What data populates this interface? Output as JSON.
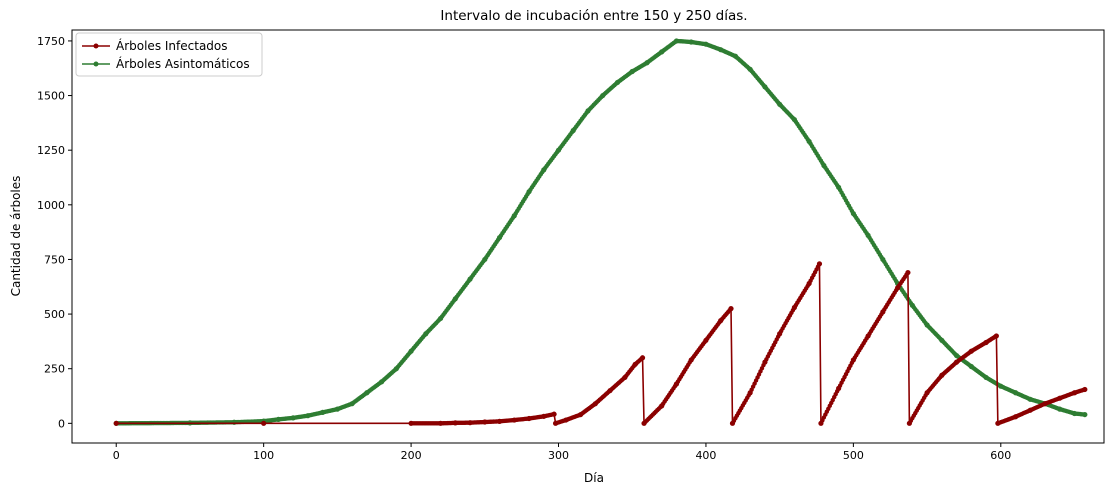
{
  "chart_data": {
    "type": "line",
    "title": "Intervalo de incubación entre 150 y 250 días.",
    "xlabel": "Día",
    "ylabel": "Cantidad de árboles",
    "xlim": [
      -30,
      670
    ],
    "ylim": [
      -90,
      1800
    ],
    "xticks": [
      0,
      100,
      200,
      300,
      400,
      500,
      600
    ],
    "yticks": [
      0,
      250,
      500,
      750,
      1000,
      1250,
      1500,
      1750
    ],
    "grid": false,
    "legend_position": "top-left",
    "series": [
      {
        "name": "Árboles Infectados",
        "color": "#8b0000",
        "marker": "circle",
        "points": [
          [
            0,
            0
          ],
          [
            100,
            0
          ],
          [
            200,
            0
          ],
          [
            220,
            0
          ],
          [
            230,
            2
          ],
          [
            240,
            3
          ],
          [
            250,
            6
          ],
          [
            260,
            9
          ],
          [
            270,
            15
          ],
          [
            280,
            22
          ],
          [
            290,
            32
          ],
          [
            297,
            42
          ],
          [
            298,
            0
          ],
          [
            305,
            15
          ],
          [
            315,
            40
          ],
          [
            325,
            90
          ],
          [
            335,
            150
          ],
          [
            345,
            210
          ],
          [
            352,
            270
          ],
          [
            357,
            300
          ],
          [
            358,
            0
          ],
          [
            370,
            80
          ],
          [
            380,
            180
          ],
          [
            390,
            290
          ],
          [
            400,
            380
          ],
          [
            410,
            470
          ],
          [
            417,
            525
          ],
          [
            418,
            0
          ],
          [
            430,
            140
          ],
          [
            440,
            280
          ],
          [
            450,
            410
          ],
          [
            460,
            530
          ],
          [
            470,
            640
          ],
          [
            477,
            730
          ],
          [
            478,
            0
          ],
          [
            490,
            160
          ],
          [
            500,
            290
          ],
          [
            510,
            400
          ],
          [
            520,
            510
          ],
          [
            530,
            620
          ],
          [
            537,
            690
          ],
          [
            538,
            0
          ],
          [
            550,
            140
          ],
          [
            560,
            220
          ],
          [
            570,
            280
          ],
          [
            580,
            330
          ],
          [
            590,
            370
          ],
          [
            597,
            400
          ],
          [
            598,
            0
          ],
          [
            610,
            30
          ],
          [
            620,
            60
          ],
          [
            630,
            90
          ],
          [
            640,
            115
          ],
          [
            650,
            140
          ],
          [
            657,
            155
          ]
        ]
      },
      {
        "name": "Árboles Asintomáticos",
        "color": "#2e7d32",
        "marker": "circle",
        "points": [
          [
            0,
            0
          ],
          [
            50,
            2
          ],
          [
            80,
            5
          ],
          [
            100,
            10
          ],
          [
            110,
            18
          ],
          [
            120,
            25
          ],
          [
            130,
            35
          ],
          [
            140,
            50
          ],
          [
            150,
            65
          ],
          [
            160,
            90
          ],
          [
            170,
            140
          ],
          [
            180,
            190
          ],
          [
            190,
            250
          ],
          [
            200,
            330
          ],
          [
            210,
            410
          ],
          [
            220,
            480
          ],
          [
            230,
            570
          ],
          [
            240,
            660
          ],
          [
            250,
            750
          ],
          [
            260,
            850
          ],
          [
            270,
            950
          ],
          [
            280,
            1060
          ],
          [
            290,
            1160
          ],
          [
            300,
            1250
          ],
          [
            310,
            1340
          ],
          [
            320,
            1430
          ],
          [
            330,
            1500
          ],
          [
            340,
            1560
          ],
          [
            350,
            1610
          ],
          [
            360,
            1650
          ],
          [
            370,
            1700
          ],
          [
            380,
            1750
          ],
          [
            390,
            1745
          ],
          [
            400,
            1735
          ],
          [
            410,
            1710
          ],
          [
            420,
            1680
          ],
          [
            430,
            1620
          ],
          [
            440,
            1540
          ],
          [
            450,
            1460
          ],
          [
            460,
            1390
          ],
          [
            470,
            1290
          ],
          [
            480,
            1180
          ],
          [
            490,
            1080
          ],
          [
            500,
            960
          ],
          [
            510,
            860
          ],
          [
            520,
            750
          ],
          [
            530,
            640
          ],
          [
            540,
            540
          ],
          [
            550,
            450
          ],
          [
            560,
            380
          ],
          [
            570,
            310
          ],
          [
            580,
            260
          ],
          [
            590,
            210
          ],
          [
            600,
            170
          ],
          [
            610,
            140
          ],
          [
            620,
            110
          ],
          [
            630,
            90
          ],
          [
            640,
            65
          ],
          [
            650,
            45
          ],
          [
            657,
            40
          ]
        ]
      }
    ]
  }
}
